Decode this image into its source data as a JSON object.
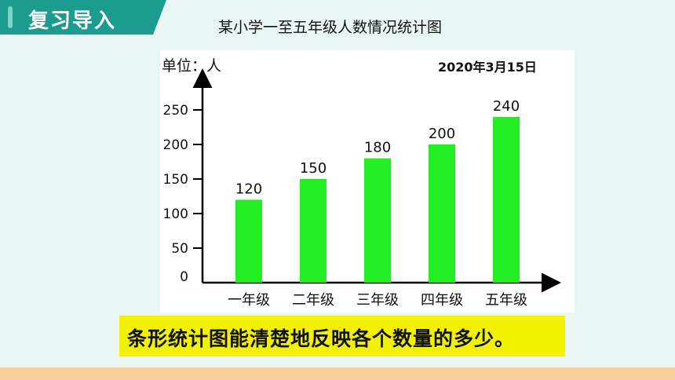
{
  "header": {
    "title": "复习导入"
  },
  "chart_title": "某小学一至五年级人数情况统计图",
  "date": "2020年3月15日",
  "caption": "条形统计图能清楚地反映各个数量的多少。",
  "chart_data": {
    "type": "bar",
    "title": "某小学一至五年级人数情况统计图",
    "ylabel": "单位：人",
    "xlabel": "",
    "categories": [
      "一年级",
      "二年级",
      "三年级",
      "四年级",
      "五年级"
    ],
    "values": [
      120,
      150,
      180,
      200,
      240
    ],
    "data_labels": [
      "120",
      "150",
      "180",
      "200",
      "240"
    ],
    "yticks": [
      0,
      50,
      100,
      150,
      200,
      250
    ],
    "ytick_labels": [
      "0",
      "50",
      "100",
      "150",
      "200",
      "250"
    ],
    "ylim": [
      0,
      250
    ],
    "bar_color": "#22ee22",
    "grid": false,
    "legend": "none"
  },
  "colors": {
    "header_bg": "#1c9c8e",
    "caption_bg": "#f2f200",
    "bottom_bar": "#f7cf9a"
  }
}
